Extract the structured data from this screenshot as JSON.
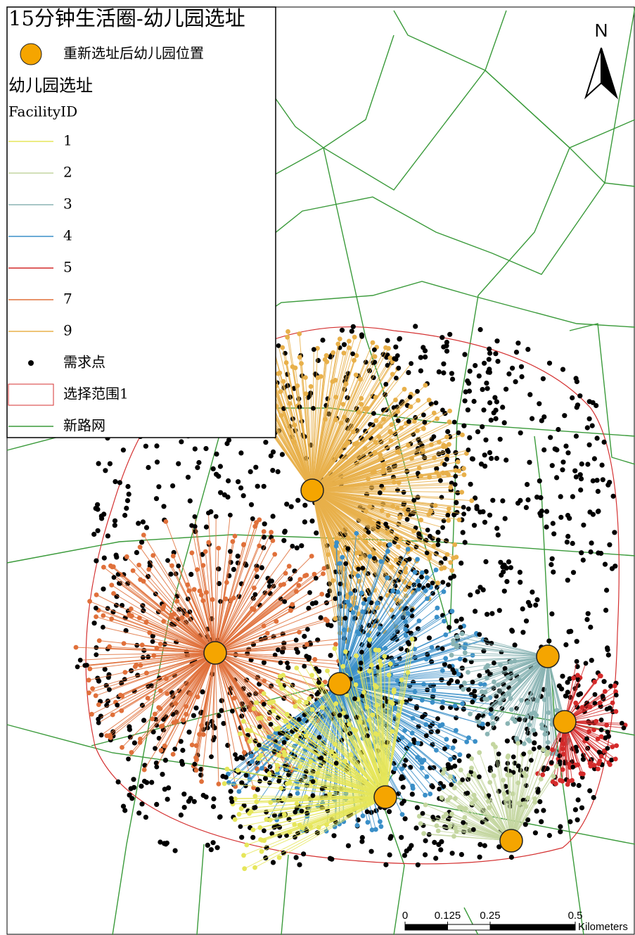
{
  "title": "15分钟生活圈-幼儿园选址",
  "legend": {
    "facility_symbol_label": "重新选址后幼儿园位置",
    "facility_symbol_color": "#f5a500",
    "layer_title": "幼儿园选址",
    "field_name": "FacilityID",
    "facilities": [
      {
        "label": "1",
        "color": "#e6e65a"
      },
      {
        "label": "2",
        "color": "#c4d6a0"
      },
      {
        "label": "3",
        "color": "#8ab4b4"
      },
      {
        "label": "4",
        "color": "#3a8fc8"
      },
      {
        "label": "5",
        "color": "#d42a2a"
      },
      {
        "label": "7",
        "color": "#e0703a"
      },
      {
        "label": "9",
        "color": "#e8b04a"
      }
    ],
    "demand_label": "需求点",
    "range_label": "选择范围1",
    "range_color": "#d43030",
    "road_label": "新路网",
    "road_color": "#3a9a3a"
  },
  "north": "N",
  "scale_bar": {
    "ticks": [
      0,
      0.125,
      0.25,
      0.5
    ],
    "unit": "Kilometers"
  }
}
